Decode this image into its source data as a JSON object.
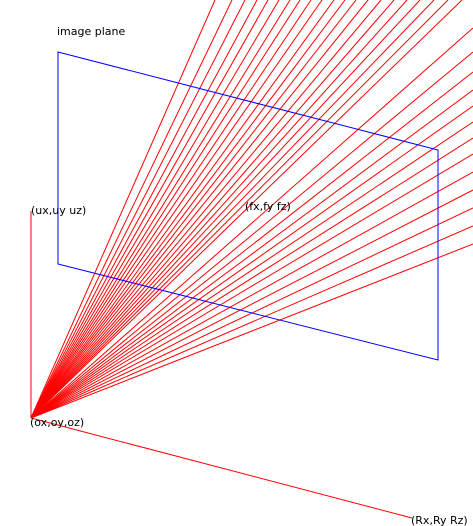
{
  "labels": {
    "image_plane": "image plane",
    "up_point": "(ux,uy uz)",
    "focal_point": "(fx,fy fz)",
    "origin_point": "(ox,oy,oz)",
    "right_point": "(Rx,Ry Rz)"
  },
  "colors": {
    "rays": "#ff0000",
    "axes": "#ff0000",
    "plane": "#0000ff",
    "text": "#000000",
    "background": "#ffffff"
  },
  "ray_count": 34
}
